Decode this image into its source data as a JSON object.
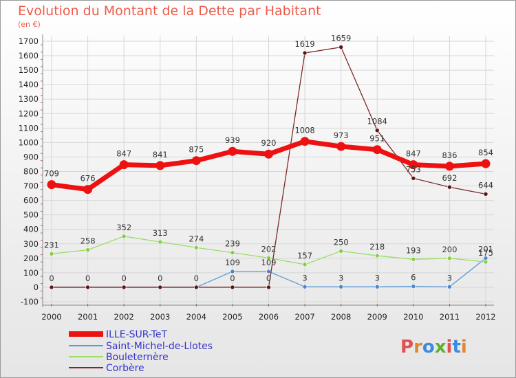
{
  "title": "Evolution du Montant de la Dette par Habitant",
  "unit_label": "(en €)",
  "logo": "Proxiti",
  "chart_data": {
    "type": "line",
    "title": "Evolution du Montant de la Dette par Habitant",
    "ylabel": "(en €)",
    "xlabel": "",
    "x": [
      "2000",
      "2001",
      "2002",
      "2003",
      "2004",
      "2005",
      "2006",
      "2007",
      "2008",
      "2009",
      "2010",
      "2011",
      "2012"
    ],
    "ylim": [
      -100,
      1700
    ],
    "yticks": [
      -100,
      0,
      100,
      200,
      300,
      400,
      500,
      600,
      700,
      800,
      900,
      1000,
      1100,
      1200,
      1300,
      1400,
      1500,
      1600,
      1700
    ],
    "grid": true,
    "legend_position": "bottom-left",
    "series": [
      {
        "name": "ILLE-SUR-TeT",
        "color": "#ee1111",
        "values": [
          709,
          676,
          847,
          841,
          875,
          939,
          920,
          1008,
          973,
          951,
          847,
          836,
          854
        ],
        "labels": [
          "709",
          "676",
          "847",
          "841",
          "875",
          "939",
          "920",
          "1008",
          "973",
          "951",
          "847",
          "836",
          "854"
        ]
      },
      {
        "name": "Saint-Michel-de-Llotes",
        "color": "#5b9bd5",
        "values": [
          0,
          0,
          0,
          0,
          0,
          109,
          109,
          3,
          3,
          3,
          6,
          3,
          201
        ],
        "labels": [
          "",
          "",
          "",
          "",
          "",
          "109",
          "109",
          "3",
          "3",
          "3",
          "6",
          "3",
          "201"
        ]
      },
      {
        "name": "Bouleternère",
        "color": "#99dd66",
        "values": [
          231,
          258,
          352,
          313,
          274,
          239,
          202,
          157,
          250,
          218,
          193,
          200,
          175
        ],
        "labels": [
          "231",
          "258",
          "352",
          "313",
          "274",
          "239",
          "202",
          "157",
          "250",
          "218",
          "193",
          "200",
          "175"
        ]
      },
      {
        "name": "Corbère",
        "color": "#7a2a2a",
        "values": [
          0,
          0,
          0,
          0,
          0,
          0,
          0,
          1619,
          1659,
          1084,
          753,
          692,
          644
        ],
        "labels": [
          "0",
          "0",
          "0",
          "0",
          "0",
          "0",
          "0",
          "1619",
          "1659",
          "1084",
          "753",
          "692",
          "644"
        ]
      }
    ]
  }
}
